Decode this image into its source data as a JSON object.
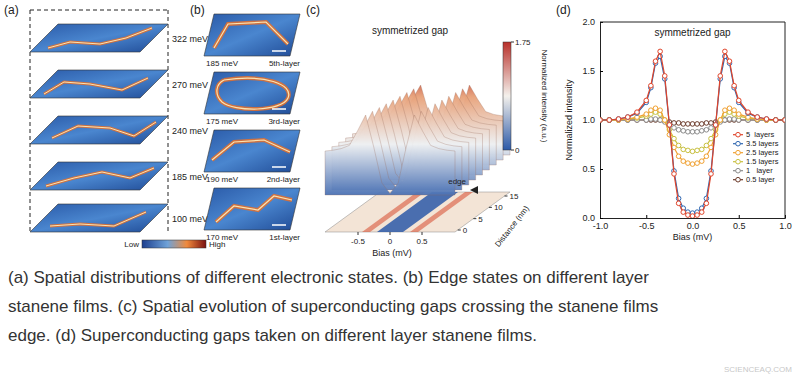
{
  "panels": {
    "a": {
      "label": "(a)",
      "energies": [
        "322 meV",
        "270 meV",
        "240 meV",
        "185 meV",
        "100 meV"
      ],
      "colorbar": [
        "Low",
        "High"
      ]
    },
    "b": {
      "label": "(b)",
      "tiles": [
        {
          "energy": "185 meV",
          "layer": "5th-layer"
        },
        {
          "energy": "175 meV",
          "layer": "3rd-layer"
        },
        {
          "energy": "190 meV",
          "layer": "2nd-layer"
        },
        {
          "energy": "170 meV",
          "layer": "1st-layer"
        }
      ]
    },
    "c": {
      "label": "(c)",
      "title": "symmetrized gap",
      "colorbar_label": "Normalized intensity (a.u.)",
      "colorbar_ticks": [
        0,
        1.75
      ],
      "xlabel": "Bias (mV)",
      "xticks": [
        -0.5,
        0,
        0.5
      ],
      "ylabel": "Distance (nm)",
      "yticks": [
        0,
        5,
        10,
        15
      ],
      "annotation": "edge"
    },
    "d": {
      "label": "(d)"
    }
  },
  "chart_data": {
    "type": "line",
    "title": "symmetrized gap",
    "xlabel": "Bias (mV)",
    "ylabel": "Normalized intensity",
    "x": [
      -1.0,
      -0.9,
      -0.8,
      -0.7,
      -0.6,
      -0.5,
      -0.45,
      -0.4,
      -0.35,
      -0.3,
      -0.25,
      -0.2,
      -0.15,
      -0.1,
      -0.05,
      0,
      0.05,
      0.1,
      0.15,
      0.2,
      0.25,
      0.3,
      0.35,
      0.4,
      0.45,
      0.5,
      0.6,
      0.7,
      0.8,
      0.9,
      1.0
    ],
    "series": [
      {
        "name": "5  layers",
        "color": "#e0452b",
        "values": [
          1.0,
          1.0,
          1.01,
          1.03,
          1.08,
          1.2,
          1.35,
          1.6,
          1.7,
          1.45,
          0.95,
          0.45,
          0.15,
          0.06,
          0.03,
          0.02,
          0.03,
          0.06,
          0.15,
          0.45,
          0.95,
          1.45,
          1.7,
          1.6,
          1.35,
          1.2,
          1.08,
          1.03,
          1.01,
          1.0,
          1.0
        ]
      },
      {
        "name": "3.5 layers",
        "color": "#2f67b1",
        "values": [
          1.0,
          1.0,
          1.01,
          1.03,
          1.07,
          1.18,
          1.33,
          1.58,
          1.65,
          1.42,
          0.95,
          0.48,
          0.2,
          0.1,
          0.06,
          0.05,
          0.06,
          0.1,
          0.2,
          0.48,
          0.95,
          1.42,
          1.65,
          1.58,
          1.33,
          1.18,
          1.07,
          1.03,
          1.01,
          1.0,
          1.0
        ]
      },
      {
        "name": "2.5 layers",
        "color": "#f0a030",
        "values": [
          1.0,
          1.0,
          1.0,
          1.01,
          1.03,
          1.06,
          1.1,
          1.12,
          1.1,
          1.0,
          0.85,
          0.72,
          0.63,
          0.58,
          0.56,
          0.55,
          0.56,
          0.58,
          0.63,
          0.72,
          0.85,
          1.0,
          1.1,
          1.12,
          1.1,
          1.06,
          1.03,
          1.01,
          1.0,
          1.0,
          1.0
        ]
      },
      {
        "name": "1.5 layers",
        "color": "#c8c040",
        "values": [
          1.0,
          1.0,
          1.0,
          1.01,
          1.02,
          1.04,
          1.06,
          1.08,
          1.06,
          1.0,
          0.9,
          0.81,
          0.74,
          0.7,
          0.69,
          0.68,
          0.69,
          0.7,
          0.74,
          0.81,
          0.9,
          1.0,
          1.06,
          1.08,
          1.06,
          1.04,
          1.02,
          1.01,
          1.0,
          1.0,
          1.0
        ]
      },
      {
        "name": "1   layer",
        "color": "#8c8c8c",
        "values": [
          1.0,
          1.0,
          1.0,
          1.0,
          1.0,
          1.0,
          1.01,
          1.01,
          1.0,
          0.98,
          0.95,
          0.92,
          0.9,
          0.89,
          0.88,
          0.88,
          0.88,
          0.89,
          0.9,
          0.92,
          0.95,
          0.98,
          1.0,
          1.01,
          1.01,
          1.0,
          1.0,
          1.0,
          1.0,
          1.0,
          1.0
        ]
      },
      {
        "name": "0.5 layer",
        "color": "#6b3a2a",
        "values": [
          1.0,
          1.0,
          1.0,
          1.0,
          1.0,
          1.0,
          1.0,
          1.0,
          1.0,
          0.99,
          0.98,
          0.97,
          0.97,
          0.96,
          0.96,
          0.96,
          0.96,
          0.96,
          0.97,
          0.97,
          0.98,
          0.99,
          1.0,
          1.0,
          1.0,
          1.0,
          1.0,
          1.0,
          1.0,
          1.0,
          1.0
        ]
      }
    ],
    "xlim": [
      -1.0,
      1.0
    ],
    "ylim": [
      0,
      2.0
    ],
    "xticks": [
      {
        "value": -1.0,
        "label": "-1.0"
      },
      -0.5,
      {
        "value": 0,
        "label": "0.0"
      },
      0.5,
      {
        "value": 1.0,
        "label": "1.0"
      }
    ],
    "yticks": [
      {
        "value": 0,
        "label": "0.0"
      },
      0.5,
      {
        "value": 1.0,
        "label": "1.0"
      },
      1.5,
      {
        "value": 2.0,
        "label": "2.0"
      }
    ],
    "legend": "right",
    "marker": "circle",
    "line_style": "solid"
  },
  "caption": [
    "(a) Spatial distributions of different electronic states. (b) Edge states on different layer",
    "stanene films. (c) Spatial evolution of superconducting gaps crossing the stanene films",
    "edge. (d) Superconducting gaps taken on different layer stanene films."
  ],
  "watermark": "SCIENCEAQ.COM"
}
